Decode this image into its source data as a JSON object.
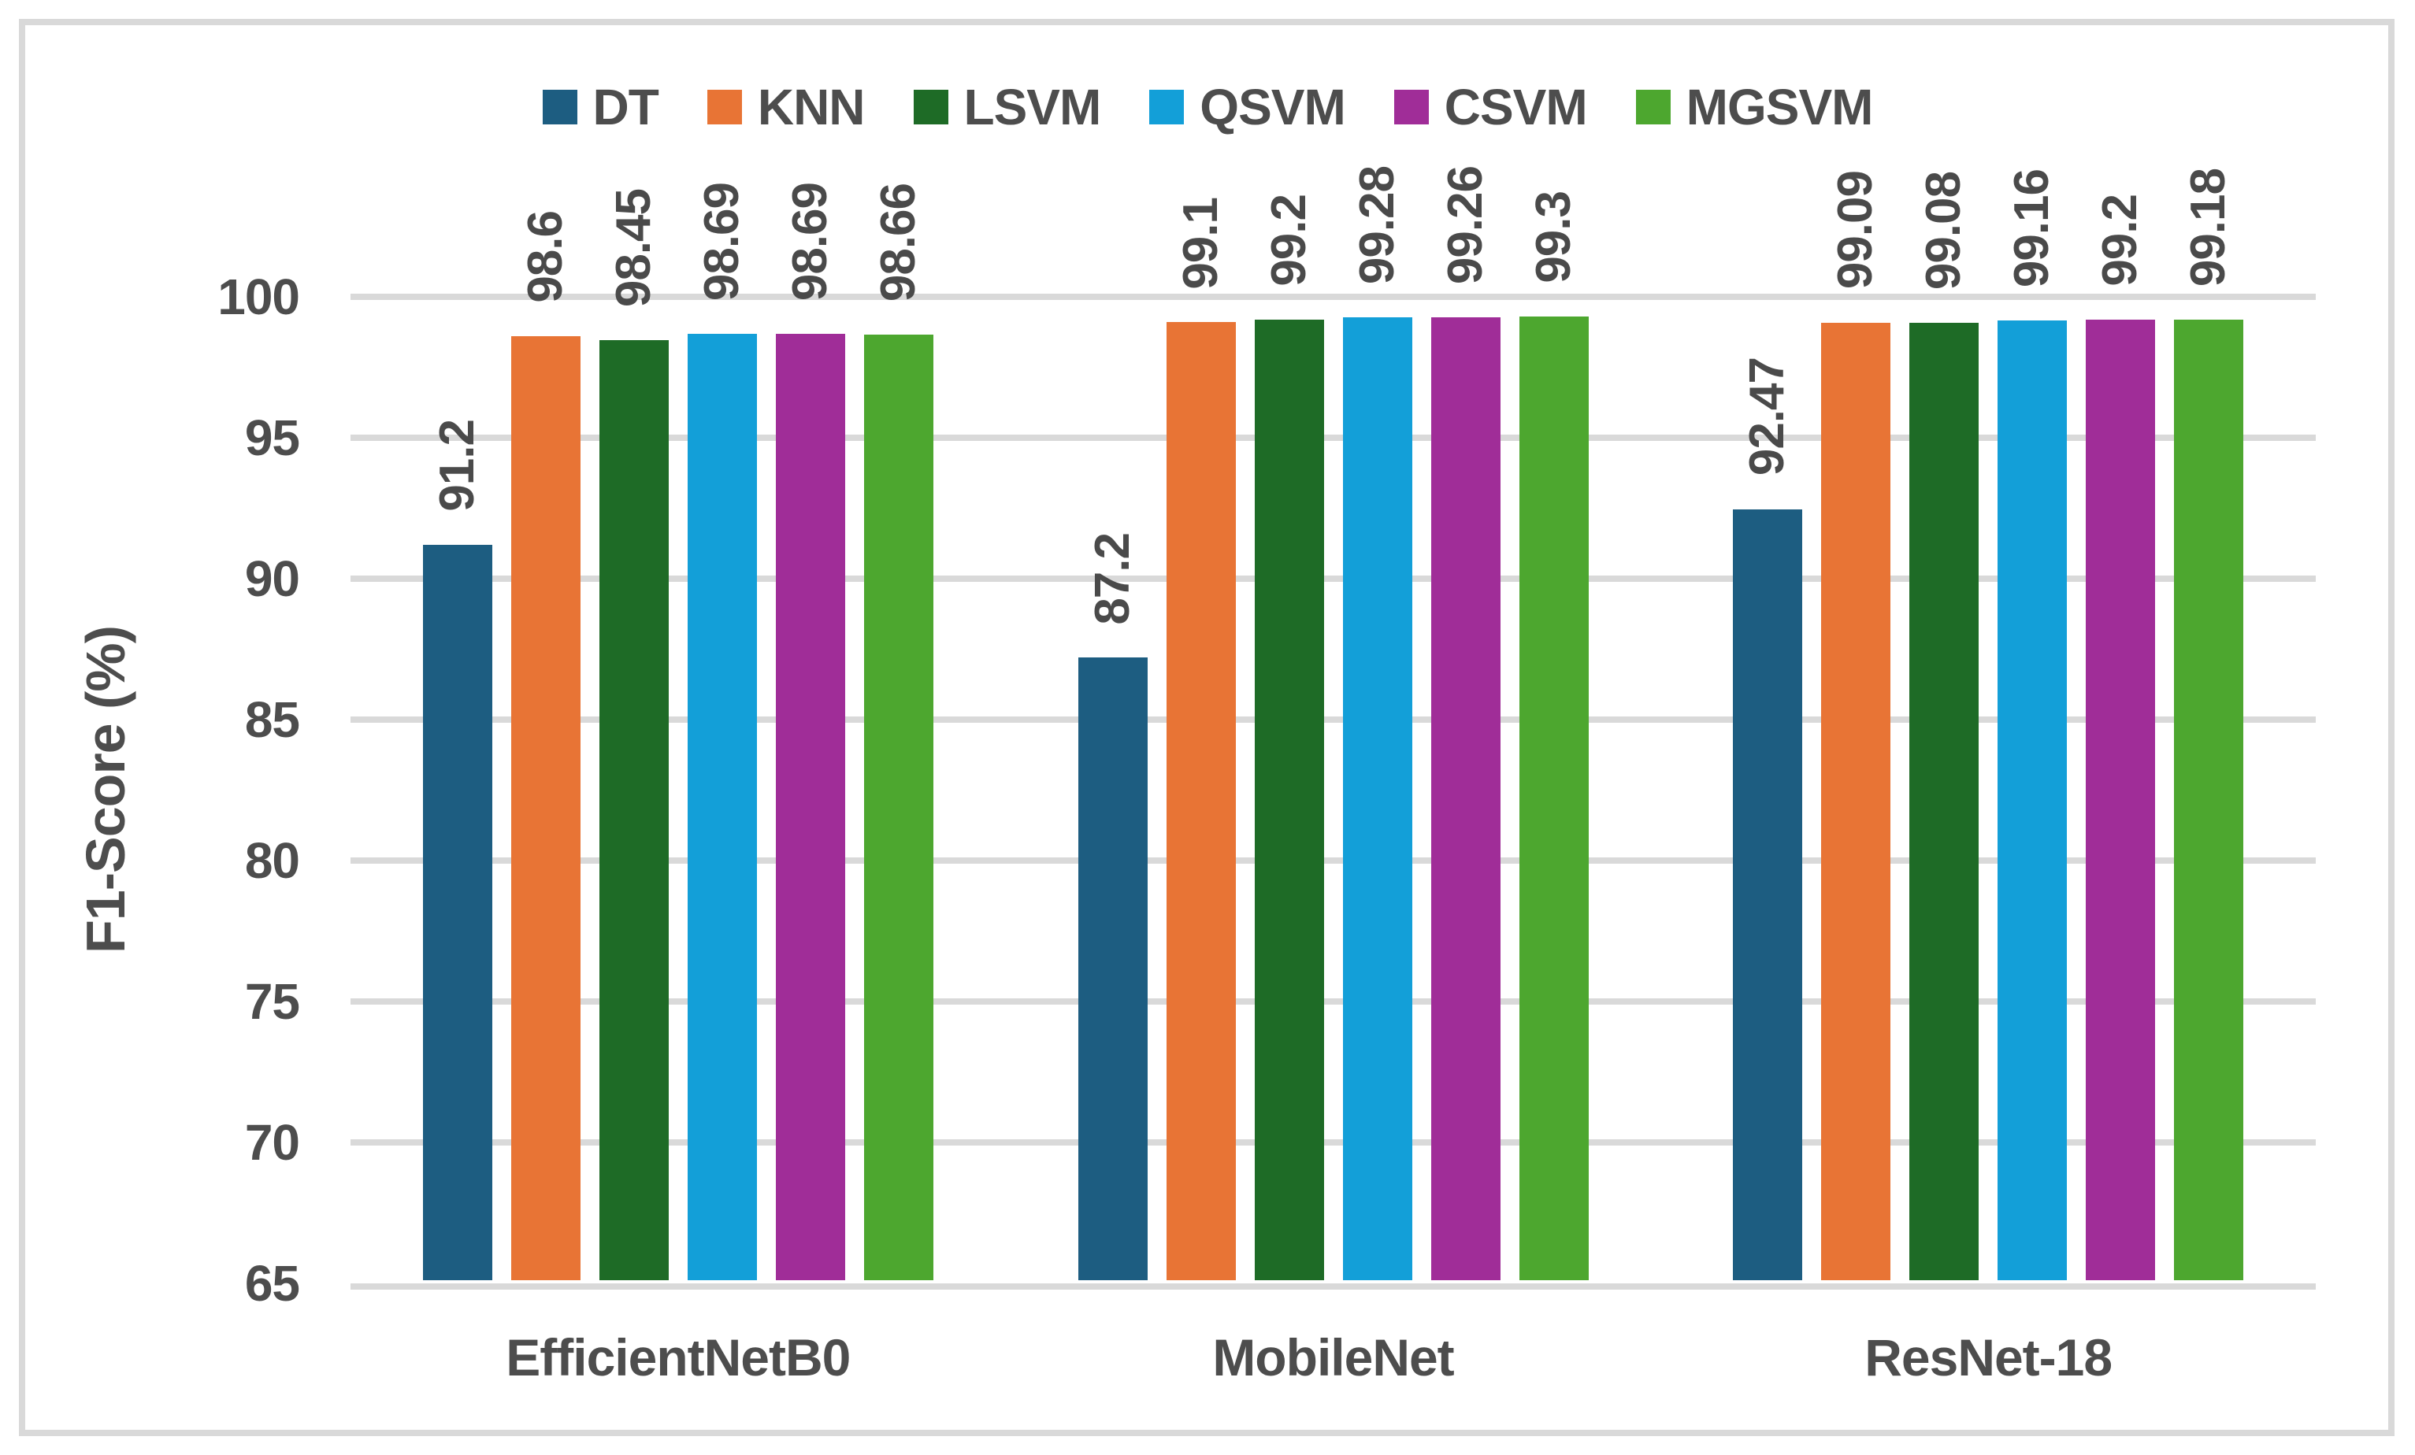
{
  "chart_data": {
    "type": "bar",
    "title": "",
    "xlabel": "",
    "ylabel": "F1-Score (%)",
    "ylim": [
      65,
      100
    ],
    "ytick_step": 5,
    "yticks": [
      "65",
      "70",
      "75",
      "80",
      "85",
      "90",
      "95",
      "100"
    ],
    "grid": true,
    "legend_position": "top",
    "categories": [
      "EfficientNetB0",
      "MobileNet",
      "ResNet-18"
    ],
    "series": [
      {
        "name": "DT",
        "color": "#1D5D81",
        "values": [
          91.2,
          87.2,
          92.47
        ]
      },
      {
        "name": "KNN",
        "color": "#E87435",
        "values": [
          98.6,
          99.1,
          99.09
        ]
      },
      {
        "name": "LSVM",
        "color": "#1E6B26",
        "values": [
          98.45,
          99.2,
          99.08
        ]
      },
      {
        "name": "QSVM",
        "color": "#139FD8",
        "values": [
          98.69,
          99.28,
          99.16
        ]
      },
      {
        "name": "CSVM",
        "color": "#A02D98",
        "values": [
          98.69,
          99.26,
          99.2
        ]
      },
      {
        "name": "MGSVM",
        "color": "#4DA72F",
        "values": [
          98.66,
          99.3,
          99.18
        ]
      }
    ],
    "data_labels": [
      [
        "91.2",
        "98.6",
        "98.45",
        "98.69",
        "98.69",
        "98.66"
      ],
      [
        "87.2",
        "99.1",
        "99.2",
        "99.28",
        "99.26",
        "99.3"
      ],
      [
        "92.47",
        "99.09",
        "99.08",
        "99.16",
        "99.2",
        "99.18"
      ]
    ]
  },
  "colors": {
    "text": "#4D4D4D",
    "grid": "#D9D9D9",
    "frame_border": "#D9D9D9",
    "background": "#FFFFFF"
  }
}
